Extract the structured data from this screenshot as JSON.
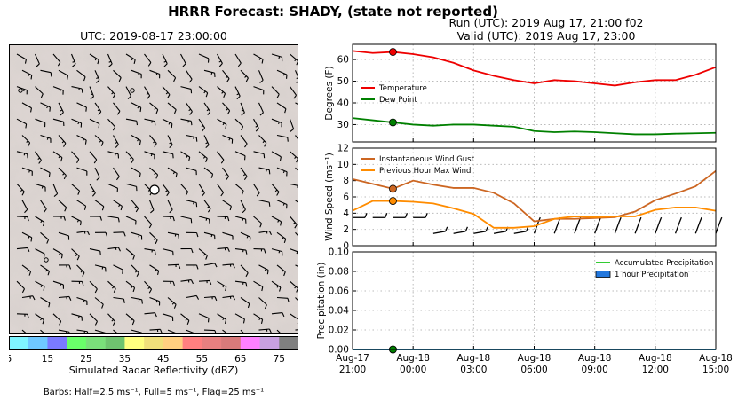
{
  "header": {
    "title": "HRRR Forecast: SHADY, (state not reported)",
    "run": "Run (UTC): 2019 Aug 17, 21:00 f02",
    "valid": "Valid (UTC): 2019 Aug 17, 23:00"
  },
  "map": {
    "title": "UTC: 2019-08-17 23:00:00",
    "colorbar_label": "Simulated Radar Reflectivity (dBZ)",
    "colorbar_ticks": [
      "5",
      "15",
      "25",
      "35",
      "45",
      "55",
      "65",
      "75"
    ],
    "colorbar_colors": [
      "#7ff5ff",
      "#6fc8ff",
      "#7a7aff",
      "#6aff6a",
      "#7ae07a",
      "#6fc46f",
      "#ffff80",
      "#f0e07a",
      "#ffd080",
      "#ff8080",
      "#e88080",
      "#d87a7a",
      "#ff80ff",
      "#c8a0e0",
      "#808080"
    ],
    "barb_note": "Barbs: Half=2.5 ms⁻¹, Full=5 ms⁻¹, Flag=25 ms⁻¹"
  },
  "x_ticks": [
    {
      "line1": "Aug-17",
      "line2": "21:00"
    },
    {
      "line1": "Aug-18",
      "line2": "00:00"
    },
    {
      "line1": "Aug-18",
      "line2": "03:00"
    },
    {
      "line1": "Aug-18",
      "line2": "06:00"
    },
    {
      "line1": "Aug-18",
      "line2": "09:00"
    },
    {
      "line1": "Aug-18",
      "line2": "12:00"
    },
    {
      "line1": "Aug-18",
      "line2": "15:00"
    }
  ],
  "colors": {
    "temperature": "#ee0000",
    "dewpoint": "#008000",
    "gust": "#cc6622",
    "prevmax": "#ff8c00",
    "accum": "#33cc33",
    "hourly": "#2277dd"
  },
  "chart_data": [
    {
      "type": "line",
      "ylabel": "Degrees (F)",
      "ylim": [
        22,
        67
      ],
      "yticks": [
        30,
        40,
        50,
        60
      ],
      "x_hours": [
        0,
        1,
        2,
        3,
        4,
        5,
        6,
        7,
        8,
        9,
        10,
        11,
        12,
        13,
        14,
        15,
        16,
        17,
        18
      ],
      "series": [
        {
          "name": "Temperature",
          "values": [
            64,
            63,
            63.5,
            62.5,
            61,
            58.5,
            55,
            52.5,
            50.5,
            49,
            50.5,
            50,
            49,
            48,
            49.5,
            50.5,
            50.5,
            53,
            56.5
          ]
        },
        {
          "name": "Dew Point",
          "values": [
            33,
            32,
            31,
            30,
            29.5,
            30,
            30,
            29.5,
            29,
            27,
            26.5,
            26.8,
            26.5,
            26,
            25.5,
            25.5,
            25.8,
            26,
            26.2
          ]
        }
      ],
      "marker_hour": 2,
      "legend": "middle-left",
      "grid": true
    },
    {
      "type": "line",
      "ylabel": "Wind Speed (ms⁻¹)",
      "ylim": [
        0,
        12
      ],
      "yticks": [
        0,
        2,
        4,
        6,
        8,
        10,
        12
      ],
      "x_hours": [
        0,
        1,
        2,
        3,
        4,
        5,
        6,
        7,
        8,
        9,
        10,
        11,
        12,
        13,
        14,
        15,
        16,
        17,
        18
      ],
      "series": [
        {
          "name": "Instantaneous Wind Gust",
          "values": [
            8.2,
            7.6,
            7.0,
            8.0,
            7.5,
            7.1,
            7.1,
            6.5,
            5.2,
            3.0,
            3.3,
            3.3,
            3.4,
            3.5,
            4.2,
            5.6,
            6.4,
            7.3,
            9.2
          ]
        },
        {
          "name": "Previous Hour Max Wind",
          "values": [
            4.3,
            5.5,
            5.5,
            5.4,
            5.2,
            4.6,
            3.9,
            2.2,
            2.2,
            2.4,
            3.3,
            3.6,
            3.5,
            3.6,
            3.6,
            4.4,
            4.7,
            4.7,
            4.3
          ]
        }
      ],
      "marker_hour": 2,
      "legend": "top-left",
      "grid": true
    },
    {
      "type": "line",
      "ylabel": "Precipitation (in)",
      "ylim": [
        0,
        0.1
      ],
      "yticks": [
        0.0,
        0.02,
        0.04,
        0.06,
        0.08,
        0.1
      ],
      "ytick_labels": [
        "0.00",
        "0.02",
        "0.04",
        "0.06",
        "0.08",
        "0.10"
      ],
      "x_hours": [
        0,
        1,
        2,
        3,
        4,
        5,
        6,
        7,
        8,
        9,
        10,
        11,
        12,
        13,
        14,
        15,
        16,
        17,
        18
      ],
      "series": [
        {
          "name": "Accumulated Precipitation",
          "values": [
            0,
            0,
            0,
            0,
            0,
            0,
            0,
            0,
            0,
            0,
            0,
            0,
            0,
            0,
            0,
            0,
            0,
            0,
            0
          ]
        },
        {
          "name": "1 hour Precipitation",
          "values": [
            0,
            0,
            0,
            0,
            0,
            0,
            0,
            0,
            0,
            0,
            0,
            0,
            0,
            0,
            0,
            0,
            0,
            0,
            0
          ]
        }
      ],
      "marker_hour": 2,
      "legend": "top-right",
      "grid": true
    }
  ]
}
